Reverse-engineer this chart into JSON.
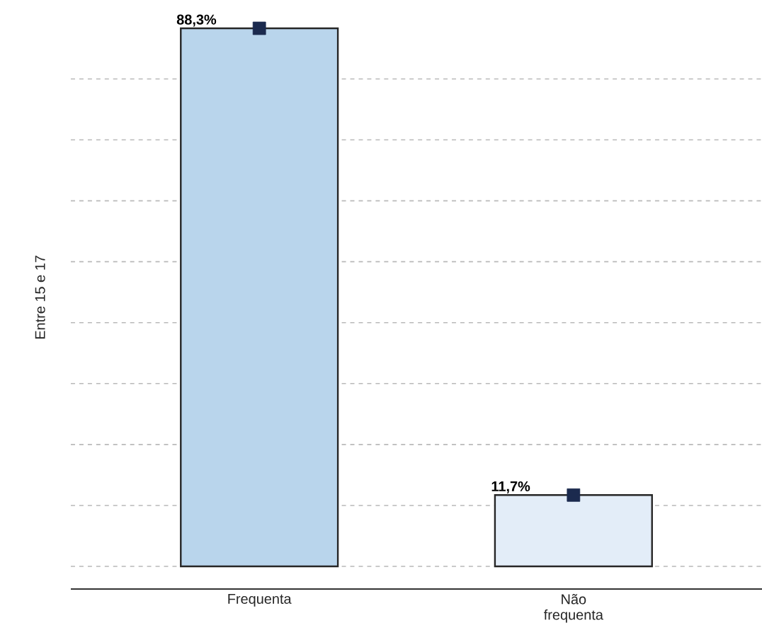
{
  "chart_data": {
    "type": "bar",
    "ylabel": "Entre 15 e 17",
    "categories": [
      "Frequenta",
      "Não frequenta"
    ],
    "series": [
      {
        "values": [
          88.3,
          11.7
        ],
        "colors": [
          "#b9d5ec",
          "#e3edf8"
        ],
        "value_labels": [
          "88,3%",
          "11,7%"
        ]
      },
      {
        "type": "scatter",
        "x": [
          "Frequenta",
          "Não frequenta"
        ],
        "values": [
          88.3,
          11.7
        ],
        "color": "#1b2a4e",
        "marker": "square"
      }
    ],
    "grid": "y",
    "tick_labels": "x"
  }
}
